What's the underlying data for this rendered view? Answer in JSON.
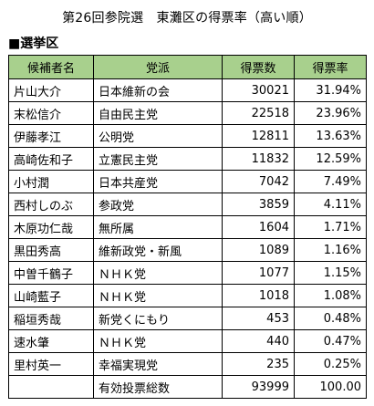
{
  "title": "第26回参院選　東灘区の得票率（高い順）",
  "section_label": "■選挙区",
  "table": {
    "headers": [
      "候補者名",
      "党派",
      "得票数",
      "得票率"
    ],
    "rows": [
      {
        "name": "片山大介",
        "party": "日本維新の会",
        "votes": "30021",
        "rate": "31.94%"
      },
      {
        "name": "末松信介",
        "party": "自由民主党",
        "votes": "22518",
        "rate": "23.96%"
      },
      {
        "name": "伊藤孝江",
        "party": "公明党",
        "votes": "12811",
        "rate": "13.63%"
      },
      {
        "name": "高崎佐和子",
        "party": "立憲民主党",
        "votes": "11832",
        "rate": "12.59%"
      },
      {
        "name": "小村潤",
        "party": "日本共産党",
        "votes": "7042",
        "rate": "7.49%"
      },
      {
        "name": "西村しのぶ",
        "party": "参政党",
        "votes": "3859",
        "rate": "4.11%"
      },
      {
        "name": "木原功仁哉",
        "party": "無所属",
        "votes": "1604",
        "rate": "1.71%"
      },
      {
        "name": "黒田秀高",
        "party": "維新政党・新風",
        "votes": "1089",
        "rate": "1.16%"
      },
      {
        "name": "中曽千鶴子",
        "party": "ＮＨＫ党",
        "votes": "1077",
        "rate": "1.15%"
      },
      {
        "name": "山崎藍子",
        "party": "ＮＨＫ党",
        "votes": "1018",
        "rate": "1.08%"
      },
      {
        "name": "稲垣秀哉",
        "party": "新党くにもり",
        "votes": "453",
        "rate": "0.48%"
      },
      {
        "name": "速水肇",
        "party": "ＮＨＫ党",
        "votes": "440",
        "rate": "0.47%"
      },
      {
        "name": "里村英一",
        "party": "幸福実現党",
        "votes": "235",
        "rate": "0.25%"
      }
    ],
    "total": {
      "label": "有効投票総数",
      "votes": "93999",
      "rate": "100.00"
    }
  },
  "colors": {
    "header_bg": "#a8d08d",
    "border": "#000000"
  }
}
